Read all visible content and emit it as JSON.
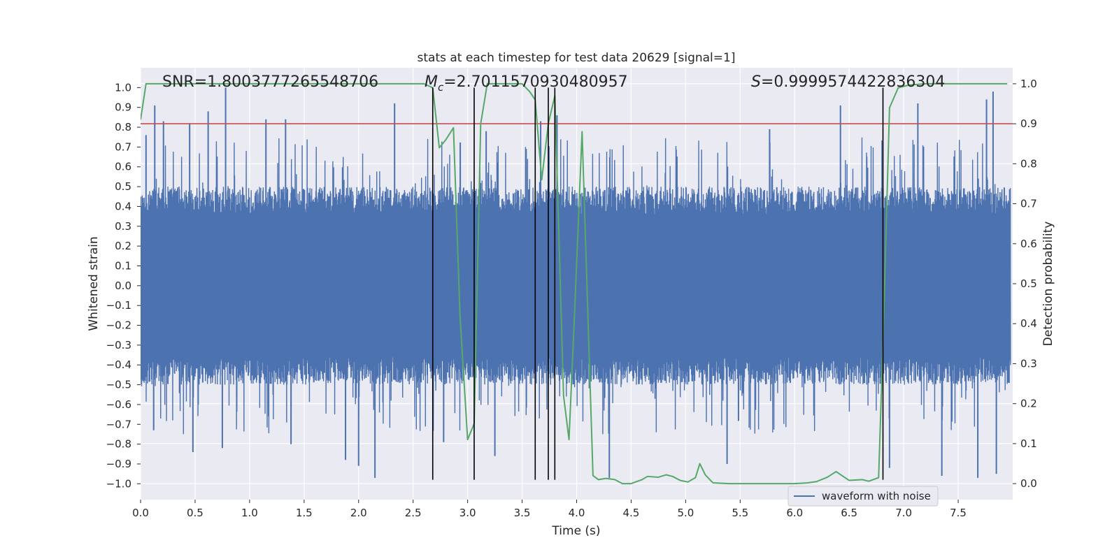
{
  "chart_data": {
    "type": "line",
    "title": "stats at each timestep for test data 20629 [signal=1]",
    "xlabel": "Time (s)",
    "ylabel_left": "Whitened strain",
    "ylabel_right": "Detection probability",
    "xlim": [
      0.0,
      8.0
    ],
    "ylim_left": [
      -1.08,
      1.1
    ],
    "ylim_right": [
      -0.04,
      1.04
    ],
    "xticks": [
      "0.0",
      "0.5",
      "1.0",
      "1.5",
      "2.0",
      "2.5",
      "3.0",
      "3.5",
      "4.0",
      "4.5",
      "5.0",
      "5.5",
      "6.0",
      "6.5",
      "7.0",
      "7.5"
    ],
    "xtick_values": [
      0,
      0.5,
      1,
      1.5,
      2,
      2.5,
      3,
      3.5,
      4,
      4.5,
      5,
      5.5,
      6,
      6.5,
      7,
      7.5
    ],
    "yticks_left": [
      "1.0",
      "0.9",
      "0.8",
      "0.7",
      "0.6",
      "0.5",
      "0.4",
      "0.3",
      "0.2",
      "0.1",
      "0.0",
      "−0.1",
      "−0.2",
      "−0.3",
      "−0.4",
      "−0.5",
      "−0.6",
      "−0.7",
      "−0.8",
      "−0.9",
      "−1.0"
    ],
    "ytick_values_left": [
      1.0,
      0.9,
      0.8,
      0.7,
      0.6,
      0.5,
      0.4,
      0.3,
      0.2,
      0.1,
      0.0,
      -0.1,
      -0.2,
      -0.3,
      -0.4,
      -0.5,
      -0.6,
      -0.7,
      -0.8,
      -0.9,
      -1.0
    ],
    "yticks_right": [
      "1.0",
      "0.9",
      "0.8",
      "0.7",
      "0.6",
      "0.5",
      "0.4",
      "0.3",
      "0.2",
      "0.1",
      "0.0"
    ],
    "ytick_values_right": [
      1.0,
      0.9,
      0.8,
      0.7,
      0.6,
      0.5,
      0.4,
      0.3,
      0.2,
      0.1,
      0.0
    ],
    "annotations": {
      "snr": "SNR=1.8003777265548706",
      "mc": "=2.7011570930480957",
      "mc_symbol": "M",
      "mc_subscript": "c",
      "s": "=0.9999574422836304",
      "s_symbol": "S"
    },
    "legend": {
      "label": "waveform with noise",
      "position": "lower-right"
    },
    "threshold": {
      "value": 0.9,
      "axis": "right",
      "color": "#c44e52"
    },
    "vertical_lines": [
      2.68,
      3.06,
      3.62,
      3.74,
      3.8,
      6.81
    ],
    "vertical_line_range": [
      -0.98,
      1.0
    ],
    "waveform": {
      "name": "waveform with noise",
      "color": "#4c72b0",
      "core_amplitude": 0.36,
      "typical_max": 0.5,
      "spike_peaks": [
        {
          "x": 0.05,
          "y": 0.76
        },
        {
          "x": 0.13,
          "y": 0.91
        },
        {
          "x": 0.21,
          "y": 0.83
        },
        {
          "x": 0.45,
          "y": 0.82
        },
        {
          "x": 0.62,
          "y": 0.88
        },
        {
          "x": 0.78,
          "y": 1.0
        },
        {
          "x": 1.15,
          "y": 0.84
        },
        {
          "x": 1.33,
          "y": 0.84
        },
        {
          "x": 2.33,
          "y": 0.92
        },
        {
          "x": 3.17,
          "y": 0.78
        },
        {
          "x": 3.67,
          "y": 0.83
        },
        {
          "x": 3.82,
          "y": 0.86
        },
        {
          "x": 5.77,
          "y": 0.79
        },
        {
          "x": 6.42,
          "y": 0.91
        },
        {
          "x": 7.13,
          "y": 0.92
        },
        {
          "x": 7.76,
          "y": 0.94
        },
        {
          "x": 7.82,
          "y": 0.98
        }
      ],
      "trough_peaks": [
        {
          "x": 0.12,
          "y": -0.73
        },
        {
          "x": 0.48,
          "y": -0.84
        },
        {
          "x": 0.75,
          "y": -0.82
        },
        {
          "x": 1.38,
          "y": -0.8
        },
        {
          "x": 1.88,
          "y": -0.88
        },
        {
          "x": 2.0,
          "y": -0.91
        },
        {
          "x": 2.15,
          "y": -0.97
        },
        {
          "x": 2.78,
          "y": -0.79
        },
        {
          "x": 3.25,
          "y": -0.86
        },
        {
          "x": 4.3,
          "y": -0.97
        },
        {
          "x": 5.38,
          "y": -0.9
        },
        {
          "x": 6.87,
          "y": -0.92
        },
        {
          "x": 7.35,
          "y": -0.96
        },
        {
          "x": 7.68,
          "y": -0.97
        },
        {
          "x": 7.85,
          "y": -0.95
        }
      ]
    },
    "detection_probability": {
      "name": "detection probability",
      "color": "#55a868",
      "x": [
        0.0,
        0.05,
        0.1,
        0.5,
        1.0,
        1.5,
        2.0,
        2.5,
        2.6,
        2.68,
        2.74,
        2.8,
        2.87,
        2.93,
        3.0,
        3.06,
        3.12,
        3.18,
        3.3,
        3.5,
        3.57,
        3.62,
        3.68,
        3.74,
        3.8,
        3.88,
        3.93,
        3.98,
        4.05,
        4.15,
        4.2,
        4.27,
        4.35,
        4.42,
        4.5,
        4.6,
        4.65,
        4.75,
        4.82,
        4.88,
        4.95,
        5.02,
        5.09,
        5.13,
        5.18,
        5.25,
        5.4,
        6.0,
        6.12,
        6.2,
        6.3,
        6.38,
        6.5,
        6.62,
        6.68,
        6.77,
        6.81,
        6.87,
        6.95,
        7.05,
        7.2,
        7.5,
        7.95
      ],
      "y": [
        0.91,
        1.0,
        1.0,
        1.0,
        1.0,
        1.0,
        1.0,
        1.0,
        1.0,
        0.99,
        0.84,
        0.86,
        0.89,
        0.42,
        0.11,
        0.15,
        0.9,
        1.0,
        1.0,
        1.0,
        0.98,
        0.96,
        0.76,
        0.9,
        0.97,
        0.22,
        0.11,
        0.42,
        0.88,
        0.02,
        0.01,
        0.013,
        0.01,
        0.0,
        0.0,
        0.01,
        0.018,
        0.016,
        0.022,
        0.018,
        0.008,
        0.004,
        0.015,
        0.05,
        0.022,
        0.002,
        0.0,
        0.0,
        0.002,
        0.005,
        0.016,
        0.03,
        0.008,
        0.01,
        0.006,
        0.015,
        0.35,
        0.94,
        0.99,
        0.997,
        1.0,
        1.0,
        1.0
      ]
    }
  }
}
